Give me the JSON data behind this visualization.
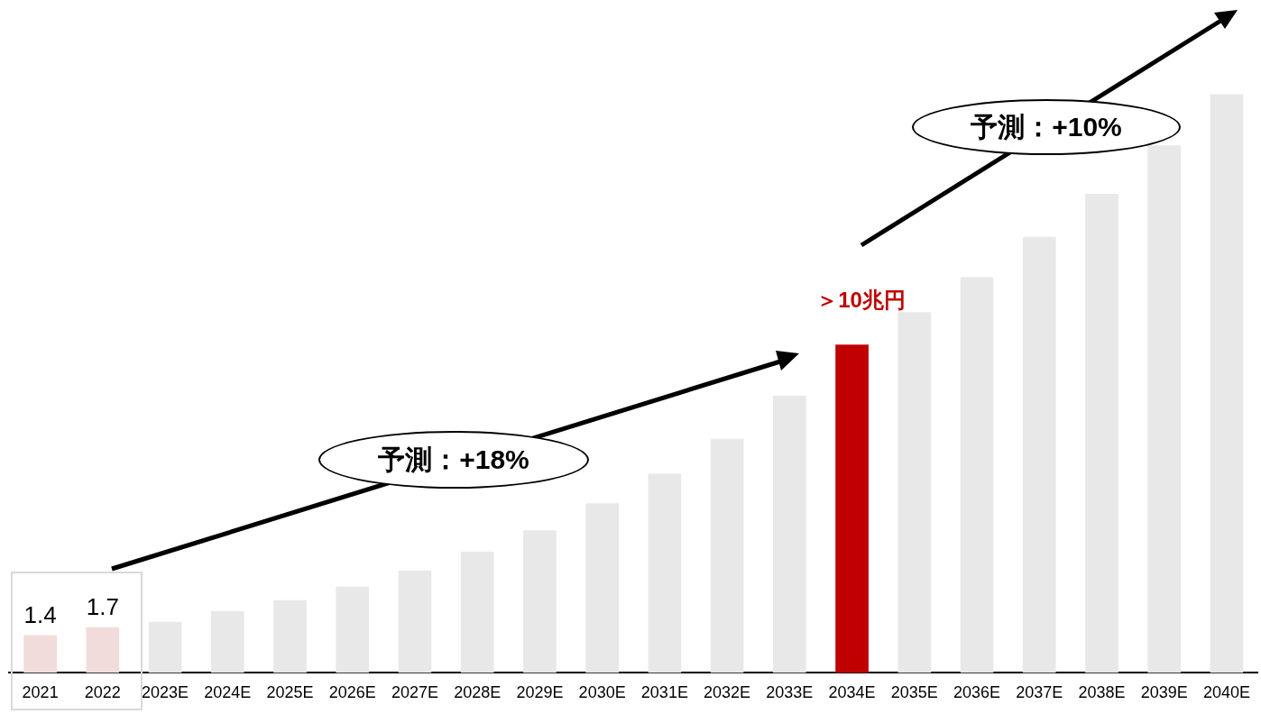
{
  "chart_data": {
    "type": "bar",
    "categories": [
      "2021",
      "2022",
      "2023E",
      "2024E",
      "2025E",
      "2026E",
      "2027E",
      "2028E",
      "2029E",
      "2030E",
      "2031E",
      "2032E",
      "2033E",
      "2034E",
      "2035E",
      "2036E",
      "2037E",
      "2038E",
      "2039E",
      "2040E"
    ],
    "values": [
      1.4,
      1.7,
      1.9,
      2.3,
      2.7,
      3.2,
      3.8,
      4.5,
      5.3,
      6.3,
      7.4,
      8.7,
      10.3,
      12.2,
      13.4,
      14.7,
      16.2,
      17.8,
      19.6,
      21.5
    ],
    "colors": [
      "#f2dcdb",
      "#f2dcdb",
      "#e8e8e8",
      "#e8e8e8",
      "#e8e8e8",
      "#e8e8e8",
      "#e8e8e8",
      "#e8e8e8",
      "#e8e8e8",
      "#e8e8e8",
      "#e8e8e8",
      "#e8e8e8",
      "#e8e8e8",
      "#c00000",
      "#e8e8e8",
      "#e8e8e8",
      "#e8e8e8",
      "#e8e8e8",
      "#e8e8e8",
      "#e8e8e8"
    ],
    "value_labels": [
      "1.4",
      "1.7",
      null,
      null,
      null,
      null,
      null,
      null,
      null,
      null,
      null,
      null,
      null,
      null,
      null,
      null,
      null,
      null,
      null,
      null
    ],
    "tick_labels": "x",
    "grid": false,
    "legend": false,
    "annotations": [
      {
        "text": "＞10兆円",
        "x": "2034E",
        "y": 12.2
      },
      "予測：+18%",
      "予測：+10%"
    ]
  }
}
